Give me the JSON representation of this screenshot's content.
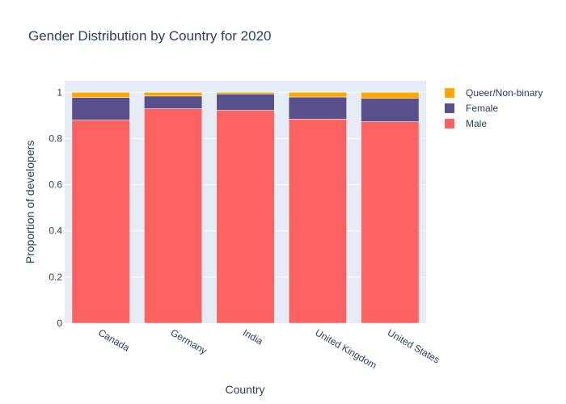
{
  "chart_data": {
    "type": "bar",
    "stacked": true,
    "title": "Gender Distribution by Country for 2020",
    "xlabel": "Country",
    "ylabel": "Proportion of developers",
    "categories": [
      "Canada",
      "Germany",
      "India",
      "United Kingdom",
      "United States"
    ],
    "series": [
      {
        "name": "Male",
        "color": "#ff6361",
        "values": [
          0.88,
          0.929,
          0.922,
          0.884,
          0.873
        ]
      },
      {
        "name": "Female",
        "color": "#58508d",
        "values": [
          0.098,
          0.055,
          0.071,
          0.096,
          0.101
        ]
      },
      {
        "name": "Queer/Non-binary",
        "color": "#ffa600",
        "values": [
          0.022,
          0.016,
          0.007,
          0.02,
          0.026
        ]
      }
    ],
    "ylim": [
      0,
      1.05
    ],
    "yticks": [
      0,
      0.2,
      0.4,
      0.6,
      0.8,
      1
    ],
    "ytick_labels": [
      "0",
      "0.2",
      "0.4",
      "0.6",
      "0.8",
      "1"
    ],
    "legend_order": [
      "Queer/Non-binary",
      "Female",
      "Male"
    ],
    "legend_position": "top-right",
    "grid": true,
    "plot_background": "#e5ecf6"
  }
}
